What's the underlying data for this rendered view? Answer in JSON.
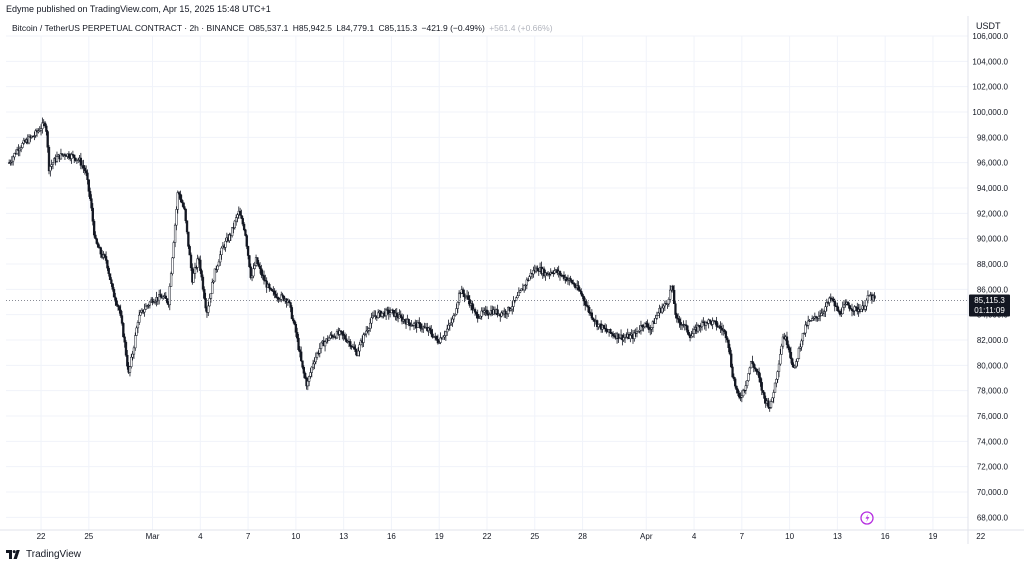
{
  "header": {
    "published_by": "Edyme published on TradingView.com, Apr 15, 2025 15:48 UTC+1"
  },
  "legend": {
    "symbol": "Bitcoin / TetherUS PERPETUAL CONTRACT · 2h · BINANCE",
    "open": "O85,537.1",
    "high": "H85,942.5",
    "low": "L84,779.1",
    "close": "C85,115.3",
    "change": "−421.9 (−0.49%)",
    "extra": "+561.4 (+0.66%)"
  },
  "axis": {
    "currency": "USDT",
    "price_tag": "85,115.3",
    "countdown": "01:11:09"
  },
  "footer": {
    "brand": "TradingView"
  },
  "colors": {
    "candle": "#131722",
    "grid": "#f0f3fa",
    "last_price_line": "#787b86",
    "price_tag_bg": "#131722",
    "alert_icon": "#b52de0"
  },
  "chart_data": {
    "type": "candlestick",
    "symbol": "Bitcoin / TetherUS PERPETUAL CONTRACT",
    "interval": "2h",
    "exchange": "BINANCE",
    "ylim": [
      67000,
      106000
    ],
    "y_ticks": [
      68000,
      70000,
      72000,
      74000,
      76000,
      78000,
      80000,
      82000,
      84000,
      86000,
      88000,
      90000,
      92000,
      94000,
      96000,
      98000,
      100000,
      102000,
      104000,
      106000
    ],
    "y_tick_labels": [
      "68,000.0",
      "70,000.0",
      "72,000.0",
      "74,000.0",
      "76,000.0",
      "78,000.0",
      "80,000.0",
      "82,000.0",
      "84,000.0",
      "86,000.0",
      "88,000.0",
      "90,000.0",
      "92,000.0",
      "94,000.0",
      "96,000.0",
      "98,000.0",
      "100,000.0",
      "102,000.0",
      "104,000.0",
      "106,000.0"
    ],
    "x_tick_labels": [
      "22",
      "25",
      "Mar",
      "4",
      "7",
      "10",
      "13",
      "16",
      "19",
      "22",
      "25",
      "28",
      "Apr",
      "4",
      "7",
      "10",
      "13",
      "16",
      "19",
      "22"
    ],
    "x_tick_days": [
      -7,
      -4,
      0,
      3,
      6,
      9,
      12,
      15,
      18,
      21,
      24,
      27,
      31,
      34,
      37,
      40,
      43,
      46,
      49,
      52
    ],
    "x_domain_days": [
      -9.2,
      51.2
    ],
    "last_price": 85115.3,
    "price_path": [
      [
        -9.0,
        96000
      ],
      [
        -8.4,
        97200
      ],
      [
        -7.8,
        97800
      ],
      [
        -7.4,
        98200
      ],
      [
        -7.0,
        98800
      ],
      [
        -6.7,
        99200
      ],
      [
        -6.5,
        95600
      ],
      [
        -6.0,
        96400
      ],
      [
        -5.5,
        96700
      ],
      [
        -5.0,
        96500
      ],
      [
        -4.6,
        96200
      ],
      [
        -4.2,
        95300
      ],
      [
        -3.9,
        93000
      ],
      [
        -3.6,
        89800
      ],
      [
        -3.2,
        88700
      ],
      [
        -2.9,
        88300
      ],
      [
        -2.5,
        85800
      ],
      [
        -2.1,
        84500
      ],
      [
        -1.8,
        82200
      ],
      [
        -1.5,
        79300
      ],
      [
        -1.2,
        81300
      ],
      [
        -0.9,
        83700
      ],
      [
        -0.5,
        84500
      ],
      [
        0.0,
        85200
      ],
      [
        0.6,
        85400
      ],
      [
        1.0,
        85000
      ],
      [
        1.6,
        93800
      ],
      [
        2.0,
        92200
      ],
      [
        2.5,
        86800
      ],
      [
        2.9,
        88500
      ],
      [
        3.4,
        84200
      ],
      [
        3.9,
        87300
      ],
      [
        4.4,
        89300
      ],
      [
        4.9,
        90300
      ],
      [
        5.4,
        92100
      ],
      [
        5.8,
        90700
      ],
      [
        6.2,
        86800
      ],
      [
        6.5,
        88300
      ],
      [
        6.9,
        87000
      ],
      [
        7.4,
        85800
      ],
      [
        8.0,
        85400
      ],
      [
        8.5,
        85200
      ],
      [
        9.0,
        82600
      ],
      [
        9.4,
        79800
      ],
      [
        9.7,
        78400
      ],
      [
        10.1,
        80300
      ],
      [
        10.6,
        81600
      ],
      [
        11.2,
        82300
      ],
      [
        11.8,
        82500
      ],
      [
        12.4,
        81800
      ],
      [
        12.8,
        80900
      ],
      [
        13.4,
        82700
      ],
      [
        13.9,
        83900
      ],
      [
        14.4,
        84100
      ],
      [
        15.0,
        84200
      ],
      [
        15.6,
        83700
      ],
      [
        16.2,
        83300
      ],
      [
        16.8,
        83100
      ],
      [
        17.4,
        82700
      ],
      [
        17.9,
        81900
      ],
      [
        18.4,
        82600
      ],
      [
        18.9,
        83700
      ],
      [
        19.3,
        85900
      ],
      [
        19.8,
        85300
      ],
      [
        20.3,
        83900
      ],
      [
        20.8,
        84100
      ],
      [
        21.3,
        84300
      ],
      [
        21.8,
        84100
      ],
      [
        22.3,
        84300
      ],
      [
        22.8,
        85100
      ],
      [
        23.3,
        86200
      ],
      [
        23.8,
        87300
      ],
      [
        24.2,
        87700
      ],
      [
        24.7,
        87200
      ],
      [
        25.2,
        87500
      ],
      [
        25.7,
        87100
      ],
      [
        26.3,
        86600
      ],
      [
        26.9,
        85700
      ],
      [
        27.4,
        84300
      ],
      [
        27.9,
        83300
      ],
      [
        28.5,
        82700
      ],
      [
        29.0,
        82400
      ],
      [
        29.6,
        82200
      ],
      [
        30.2,
        82300
      ],
      [
        30.8,
        83300
      ],
      [
        31.3,
        82900
      ],
      [
        31.8,
        84300
      ],
      [
        32.3,
        84900
      ],
      [
        32.6,
        86300
      ],
      [
        32.9,
        83500
      ],
      [
        33.3,
        83300
      ],
      [
        33.8,
        82300
      ],
      [
        34.3,
        83100
      ],
      [
        34.8,
        83500
      ],
      [
        35.3,
        83300
      ],
      [
        35.8,
        82800
      ],
      [
        36.1,
        82200
      ],
      [
        36.4,
        79400
      ],
      [
        36.8,
        77300
      ],
      [
        37.2,
        78300
      ],
      [
        37.6,
        80300
      ],
      [
        38.0,
        79300
      ],
      [
        38.4,
        77400
      ],
      [
        38.8,
        76700
      ],
      [
        39.2,
        79300
      ],
      [
        39.6,
        82400
      ],
      [
        39.9,
        81700
      ],
      [
        40.3,
        79500
      ],
      [
        40.7,
        81900
      ],
      [
        41.1,
        83300
      ],
      [
        41.6,
        83700
      ],
      [
        42.1,
        84300
      ],
      [
        42.6,
        85300
      ],
      [
        43.1,
        84100
      ],
      [
        43.6,
        84800
      ],
      [
        44.1,
        84400
      ],
      [
        44.6,
        84500
      ],
      [
        45.0,
        85500
      ],
      [
        45.4,
        85115
      ]
    ]
  }
}
